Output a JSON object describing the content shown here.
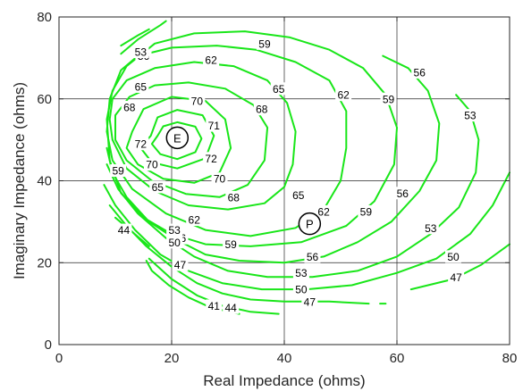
{
  "chart_data": {
    "type": "line",
    "subtype": "contour",
    "xlabel": "Real Impedance (ohms)",
    "ylabel": "Imaginary Impedance (ohms)",
    "xlim": [
      0,
      80
    ],
    "ylim": [
      0,
      80
    ],
    "xticks": [
      0,
      20,
      40,
      60,
      80
    ],
    "yticks": [
      0,
      20,
      40,
      60,
      80
    ],
    "grid": true,
    "line_color": "#19e619",
    "grid_color": "#262626",
    "contour_levels": [
      41,
      44,
      47,
      50,
      53,
      56,
      59,
      62,
      65,
      68,
      70,
      71,
      72
    ],
    "markers": [
      {
        "label": "E",
        "x": 21,
        "y": 50.5
      },
      {
        "label": "P",
        "x": 44.5,
        "y": 29.5
      }
    ],
    "contours": [
      {
        "level": 72,
        "labels": [
          {
            "text": "72",
            "x": 27,
            "y": 45.5
          },
          {
            "text": "72",
            "x": 14.5,
            "y": 49
          }
        ],
        "points": [
          [
            17.5,
            51
          ],
          [
            18.5,
            53.3
          ],
          [
            21,
            54.3
          ],
          [
            24.2,
            53.2
          ],
          [
            25.3,
            50.3
          ],
          [
            24.2,
            47
          ],
          [
            21,
            45.3
          ],
          [
            18,
            46.5
          ],
          [
            16.5,
            49
          ],
          [
            17.5,
            51
          ]
        ]
      },
      {
        "level": 71,
        "labels": [
          {
            "text": "71",
            "x": 27.5,
            "y": 53.5
          }
        ],
        "points": [
          [
            16.3,
            51
          ],
          [
            17.5,
            55.5
          ],
          [
            21,
            57.3
          ],
          [
            25.5,
            56
          ],
          [
            27.5,
            51
          ],
          [
            26,
            45.5
          ],
          [
            21,
            43
          ],
          [
            16.5,
            44.5
          ],
          [
            14.5,
            48
          ],
          [
            16.3,
            51
          ]
        ]
      },
      {
        "level": 70,
        "labels": [
          {
            "text": "70",
            "x": 24.5,
            "y": 59.5
          },
          {
            "text": "70",
            "x": 28.5,
            "y": 40.5
          },
          {
            "text": "70",
            "x": 16.5,
            "y": 44
          }
        ],
        "points": [
          [
            13,
            52
          ],
          [
            15,
            57.5
          ],
          [
            20,
            60.5
          ],
          [
            26,
            59.5
          ],
          [
            29.5,
            55
          ],
          [
            30.5,
            48
          ],
          [
            28.5,
            42
          ],
          [
            24,
            39.5
          ],
          [
            18.5,
            40.5
          ],
          [
            14,
            44
          ],
          [
            12,
            48
          ],
          [
            13,
            52
          ]
        ]
      },
      {
        "level": 68,
        "labels": [
          {
            "text": "68",
            "x": 36,
            "y": 57.5
          },
          {
            "text": "68",
            "x": 31,
            "y": 36
          },
          {
            "text": "68",
            "x": 12.5,
            "y": 58
          }
        ],
        "points": [
          [
            10,
            56
          ],
          [
            12.5,
            60.5
          ],
          [
            17,
            63.3
          ],
          [
            23,
            64
          ],
          [
            29.5,
            62.5
          ],
          [
            34.5,
            58.5
          ],
          [
            37,
            53
          ],
          [
            36.5,
            45
          ],
          [
            33.5,
            39
          ],
          [
            28.5,
            36
          ],
          [
            22.5,
            36.8
          ],
          [
            16.5,
            40
          ],
          [
            12,
            45
          ],
          [
            10,
            50
          ],
          [
            10,
            56
          ]
        ]
      },
      {
        "level": 65,
        "labels": [
          {
            "text": "65",
            "x": 39,
            "y": 62.5
          },
          {
            "text": "65",
            "x": 42.5,
            "y": 36.5
          },
          {
            "text": "65",
            "x": 14.5,
            "y": 63
          },
          {
            "text": "65",
            "x": 17.5,
            "y": 38.5
          }
        ],
        "points": [
          [
            9.5,
            60
          ],
          [
            12,
            64.5
          ],
          [
            17,
            67.5
          ],
          [
            24,
            69
          ],
          [
            31,
            68
          ],
          [
            37,
            64.5
          ],
          [
            40.5,
            59
          ],
          [
            42,
            52
          ],
          [
            41.5,
            44
          ],
          [
            40,
            38.5
          ],
          [
            36.5,
            34.5
          ],
          [
            30,
            33
          ],
          [
            23,
            34
          ],
          [
            17,
            37.5
          ],
          [
            12,
            43
          ],
          [
            9.5,
            50
          ],
          [
            9,
            55
          ],
          [
            9.5,
            60
          ]
        ]
      },
      {
        "level": 62,
        "labels": [
          {
            "text": "62",
            "x": 27,
            "y": 69.5
          },
          {
            "text": "62",
            "x": 50.5,
            "y": 61
          },
          {
            "text": "62",
            "x": 47,
            "y": 32.5
          },
          {
            "text": "62",
            "x": 24,
            "y": 30.5
          }
        ],
        "points": [
          [
            11,
            67
          ],
          [
            14,
            70.5
          ],
          [
            20,
            72.5
          ],
          [
            28,
            73
          ],
          [
            35,
            72
          ],
          [
            42,
            69
          ],
          [
            48,
            64.5
          ],
          [
            51,
            57
          ],
          [
            51,
            48
          ],
          [
            50,
            40
          ],
          [
            47,
            33
          ],
          [
            42,
            28.5
          ],
          [
            34,
            26.5
          ],
          [
            26,
            28
          ],
          [
            19,
            32
          ],
          [
            13,
            38
          ],
          [
            9.5,
            45
          ],
          [
            8.5,
            52
          ],
          [
            9,
            60
          ],
          [
            11,
            67
          ]
        ]
      },
      {
        "level": 59,
        "labels": [
          {
            "text": "59",
            "x": 36.5,
            "y": 73.5
          },
          {
            "text": "59",
            "x": 58.5,
            "y": 60
          },
          {
            "text": "59",
            "x": 54.5,
            "y": 32.5
          },
          {
            "text": "59",
            "x": 30.5,
            "y": 24.5
          },
          {
            "text": "59",
            "x": 10.5,
            "y": 42.5
          }
        ],
        "points": [
          [
            12,
            68
          ],
          [
            17,
            73.5
          ],
          [
            24,
            76
          ],
          [
            33,
            76.5
          ],
          [
            41,
            75
          ],
          [
            48,
            72
          ],
          [
            54,
            67.5
          ],
          [
            58,
            61
          ],
          [
            60,
            53
          ],
          [
            59.5,
            44
          ],
          [
            56,
            35
          ],
          [
            51,
            29
          ],
          [
            43,
            25
          ],
          [
            34,
            24
          ],
          [
            26,
            24.5
          ],
          [
            20,
            27
          ],
          [
            15,
            31
          ],
          [
            11,
            37
          ],
          [
            9,
            45
          ],
          [
            8.5,
            55
          ],
          [
            9.5,
            62
          ],
          [
            12,
            68
          ]
        ]
      },
      {
        "level": 56,
        "labels": [
          {
            "text": "56",
            "x": 15,
            "y": 70.5
          },
          {
            "text": "56",
            "x": 64,
            "y": 66.5
          },
          {
            "text": "56",
            "x": 61,
            "y": 37
          },
          {
            "text": "56",
            "x": 45,
            "y": 21.5
          },
          {
            "text": "56",
            "x": 21.5,
            "y": 26
          }
        ],
        "points": [
          [
            11,
            71
          ],
          [
            14,
            74.5
          ],
          [
            18,
            78
          ],
          [
            19,
            79
          ]
        ]
      },
      {
        "level": 56,
        "labels": [],
        "points": [
          [
            57.5,
            70.5
          ],
          [
            62,
            67.5
          ],
          [
            65.5,
            62
          ],
          [
            67.5,
            54
          ],
          [
            67,
            45
          ],
          [
            64,
            37.5
          ],
          [
            59,
            30
          ],
          [
            53,
            25
          ],
          [
            47,
            21.5
          ],
          [
            40,
            20
          ],
          [
            32,
            20.5
          ],
          [
            26,
            22
          ],
          [
            21,
            25.5
          ],
          [
            16,
            30
          ],
          [
            12,
            36
          ],
          [
            9.5,
            42
          ],
          [
            8.5,
            48
          ]
        ]
      },
      {
        "level": 53,
        "labels": [
          {
            "text": "53",
            "x": 14.5,
            "y": 71.5
          },
          {
            "text": "53",
            "x": 73,
            "y": 56
          },
          {
            "text": "53",
            "x": 66,
            "y": 28.5
          },
          {
            "text": "53",
            "x": 43,
            "y": 17.5
          },
          {
            "text": "53",
            "x": 20.5,
            "y": 28
          }
        ],
        "points": [
          [
            11,
            73
          ],
          [
            14,
            75.5
          ],
          [
            16,
            77
          ]
        ]
      },
      {
        "level": 53,
        "labels": [],
        "points": [
          [
            70.5,
            61
          ],
          [
            73,
            57
          ],
          [
            74.5,
            50
          ],
          [
            74,
            42
          ],
          [
            71,
            33.5
          ],
          [
            66,
            27
          ],
          [
            60,
            21.5
          ],
          [
            53,
            18
          ],
          [
            45,
            16.5
          ],
          [
            37,
            16.5
          ],
          [
            30,
            18
          ],
          [
            24,
            21.5
          ],
          [
            19,
            26
          ],
          [
            14,
            32
          ],
          [
            10.5,
            38
          ],
          [
            8.5,
            44
          ]
        ]
      },
      {
        "level": 50,
        "labels": [
          {
            "text": "50",
            "x": 70,
            "y": 21.5
          },
          {
            "text": "50",
            "x": 43,
            "y": 13.5
          },
          {
            "text": "50",
            "x": 20.5,
            "y": 25
          }
        ],
        "points": [
          [
            80,
            42
          ],
          [
            77,
            34
          ],
          [
            73,
            27
          ],
          [
            67,
            21
          ],
          [
            60,
            17.5
          ],
          [
            52,
            14.5
          ],
          [
            44,
            13.5
          ],
          [
            36,
            13.5
          ],
          [
            29,
            15
          ],
          [
            23,
            18
          ],
          [
            18,
            22
          ],
          [
            13.5,
            28
          ],
          [
            10,
            34
          ],
          [
            8,
            39
          ]
        ]
      },
      {
        "level": 47,
        "labels": [
          {
            "text": "47",
            "x": 70.5,
            "y": 16.5
          },
          {
            "text": "47",
            "x": 44.5,
            "y": 10.5
          },
          {
            "text": "47",
            "x": 21.5,
            "y": 19.5
          }
        ],
        "points": [
          [
            62.5,
            13.5
          ],
          [
            70,
            16
          ],
          [
            75,
            19.5
          ],
          [
            80,
            24.5
          ]
        ]
      },
      {
        "level": 47,
        "labels": [],
        "points": [
          [
            55,
            10
          ],
          [
            48,
            10.5
          ],
          [
            40,
            10.5
          ],
          [
            34,
            11
          ],
          [
            29,
            12.5
          ],
          [
            24.5,
            15
          ],
          [
            20,
            19
          ],
          [
            15.5,
            24
          ],
          [
            12,
            29
          ],
          [
            9,
            34
          ]
        ]
      },
      {
        "level": 47,
        "labels": [],
        "points": [
          [
            57,
            10
          ],
          [
            58,
            10
          ]
        ]
      },
      {
        "level": 44,
        "labels": [
          {
            "text": "44",
            "x": 30.5,
            "y": 9
          },
          {
            "text": "44",
            "x": 11.5,
            "y": 28
          }
        ],
        "points": [
          [
            39,
            7.5
          ],
          [
            34,
            8
          ],
          [
            29,
            9.5
          ],
          [
            24.5,
            12
          ],
          [
            20,
            16
          ],
          [
            16,
            21
          ]
        ]
      },
      {
        "level": 44,
        "labels": [],
        "points": [
          [
            16,
            24
          ],
          [
            13,
            27.5
          ],
          [
            10,
            31
          ]
        ]
      },
      {
        "level": 41,
        "labels": [
          {
            "text": "41",
            "x": 27.5,
            "y": 9.5
          }
        ],
        "points": [
          [
            32,
            7.5
          ],
          [
            27,
            9
          ],
          [
            23,
            11.5
          ],
          [
            19.5,
            14.5
          ],
          [
            16.5,
            18
          ],
          [
            15.5,
            20.5
          ]
        ]
      }
    ]
  }
}
